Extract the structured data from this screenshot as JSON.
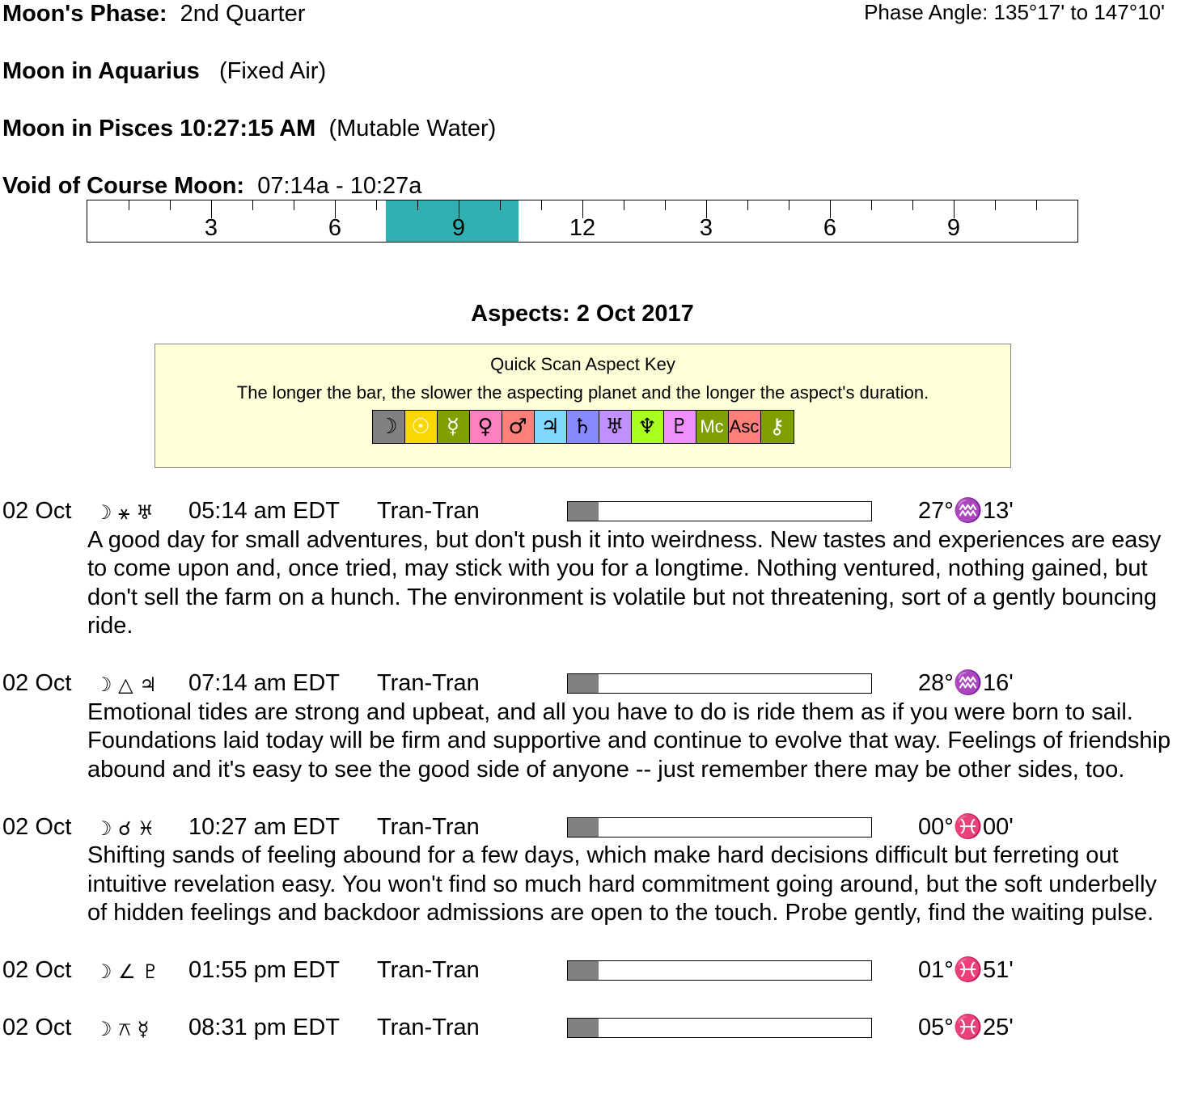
{
  "header": {
    "phase_label": "Moon's Phase:",
    "phase_value": "2nd Quarter",
    "phase_angle": "Phase Angle:  135°17' to 147°10'",
    "moon_sign_label": "Moon in Aquarius",
    "moon_sign_quality": "(Fixed Air)",
    "moon_ingress_label": "Moon in Pisces 10:27:15 AM",
    "moon_ingress_quality": "(Mutable Water)",
    "voc_label": "Void of Course Moon:",
    "voc_value": "07:14a -  10:27a"
  },
  "timeline": {
    "labels": [
      "3",
      "6",
      "9",
      "12",
      "3",
      "6",
      "9"
    ],
    "voc_start_hour": 7.23,
    "voc_end_hour": 10.45,
    "highlight_color": "#30b0b2"
  },
  "aspects_title": "Aspects: 2 Oct 2017",
  "key": {
    "title": "Quick Scan Aspect Key",
    "subtitle": "The longer the bar, the slower the aspecting planet and the longer the aspect's duration.",
    "items": [
      {
        "glyph": "☽",
        "color": "#808080",
        "fg": "#000"
      },
      {
        "glyph": "☉",
        "color": "#f8d800",
        "fg": "#fff"
      },
      {
        "glyph": "☿",
        "color": "#80a000",
        "fg": "#fff"
      },
      {
        "glyph": "♀",
        "color": "#ff80c0",
        "fg": "#000"
      },
      {
        "glyph": "♂",
        "color": "#ff8078",
        "fg": "#000"
      },
      {
        "glyph": "♃",
        "color": "#80d8ff",
        "fg": "#000"
      },
      {
        "glyph": "♄",
        "color": "#8888ff",
        "fg": "#000"
      },
      {
        "glyph": "♅",
        "color": "#c090ff",
        "fg": "#000"
      },
      {
        "glyph": "♆",
        "color": "#a8ff20",
        "fg": "#000"
      },
      {
        "glyph": "♇",
        "color": "#f090ff",
        "fg": "#000"
      },
      {
        "glyph": "Mc",
        "color": "#80a000",
        "fg": "#fff"
      },
      {
        "glyph": "Asc",
        "color": "#ff8078",
        "fg": "#000"
      },
      {
        "glyph": "⚷",
        "color": "#80a000",
        "fg": "#fff"
      }
    ]
  },
  "entries": [
    {
      "date": "02 Oct",
      "glyphs": "☽ ⚹ ♅",
      "time": "05:14 am EDT",
      "type": "Tran-Tran",
      "bar": 0.1,
      "position": "27°♒13'",
      "text": "A good day for small adventures, but don't push it into weirdness. New tastes and experiences are easy to come upon and, once tried, may stick with you for a longtime. Nothing ventured, nothing gained, but don't sell the farm on a hunch. The environment is volatile but not threatening, sort of a gently bouncing ride."
    },
    {
      "date": "02 Oct",
      "glyphs": "☽ △ ♃",
      "time": "07:14 am EDT",
      "type": "Tran-Tran",
      "bar": 0.1,
      "position": "28°♒16'",
      "text": "Emotional tides are strong and upbeat, and all you have to do is ride them as if you were born to sail. Foundations laid today will be firm and supportive and continue to evolve that way. Feelings of friendship abound and it's easy to see the good side of anyone -- just remember there may be other sides, too."
    },
    {
      "date": "02 Oct",
      "glyphs": "☽ ☌ ♓",
      "time": "10:27 am EDT",
      "type": "Tran-Tran",
      "bar": 0.1,
      "position": "00°♓00'",
      "text": "Shifting sands of feeling abound for a few days, which make hard decisions difficult but ferreting out intuitive revelation easy. You won't find so much hard commitment going around, but the soft underbelly of hidden feelings and backdoor admissions are open to the touch. Probe gently, find the waiting pulse."
    },
    {
      "date": "02 Oct",
      "glyphs": "☽ ∠ ♇",
      "time": "01:55 pm EDT",
      "type": "Tran-Tran",
      "bar": 0.1,
      "position": "01°♓51'",
      "text": ""
    },
    {
      "date": "02 Oct",
      "glyphs": "☽ ⚻ ☿",
      "time": "08:31 pm EDT",
      "type": "Tran-Tran",
      "bar": 0.1,
      "position": "05°♓25'",
      "text": ""
    }
  ]
}
